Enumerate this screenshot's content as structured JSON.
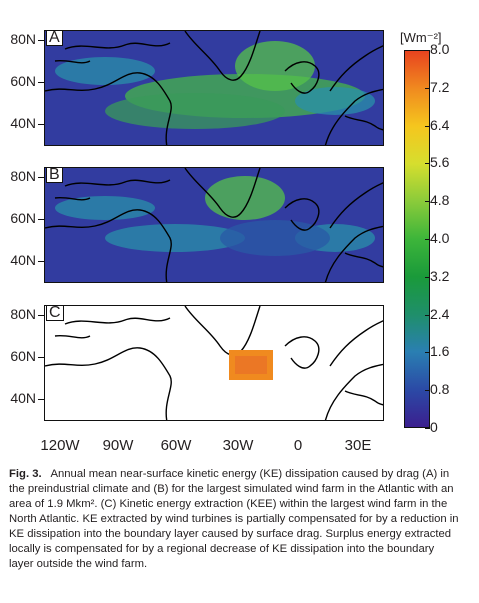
{
  "chart_data": {
    "type": "heatmap",
    "panels": [
      {
        "label": "A",
        "description_values": "KE dissipation, preindustrial climate"
      },
      {
        "label": "B",
        "description_values": "KE dissipation, with largest wind farm"
      },
      {
        "label": "C",
        "description_values": "KE extraction within wind farm"
      }
    ],
    "y_ticks": [
      "80N",
      "60N",
      "40N"
    ],
    "x_ticks": [
      "120W",
      "90W",
      "60W",
      "30W",
      "0",
      "30E"
    ],
    "colorbar": {
      "unit": "[Wm⁻²]",
      "ticks": [
        "8.0",
        "7.2",
        "6.4",
        "5.6",
        "4.8",
        "4.0",
        "3.2",
        "2.4",
        "1.6",
        "0.8",
        "0"
      ],
      "range": [
        0,
        8.0
      ],
      "colors": [
        "#3b1f8f",
        "#2b4aa6",
        "#2a7fb2",
        "#1f8f6a",
        "#1a9a3a",
        "#3db53a",
        "#8acb3a",
        "#d6de2e",
        "#f5c61e",
        "#f08a1f",
        "#e8431f"
      ]
    }
  },
  "caption": {
    "fig": "Fig. 3.",
    "text": "Annual mean near-surface kinetic energy (KE) dissipation caused by drag (A) in the preindustrial climate and (B) for the largest simulated wind farm in the Atlantic with an area of 1.9 Mkm². (C) Kinetic energy extraction (KEE) within the largest wind farm in the North Atlantic. KE extracted by wind turbines is partially compensated for by a reduction in KE dissipation into the boundary layer caused by surface drag. Surplus energy extracted locally is compensated for by a regional decrease of KE dissipation into the boundary layer outside the wind farm."
  }
}
